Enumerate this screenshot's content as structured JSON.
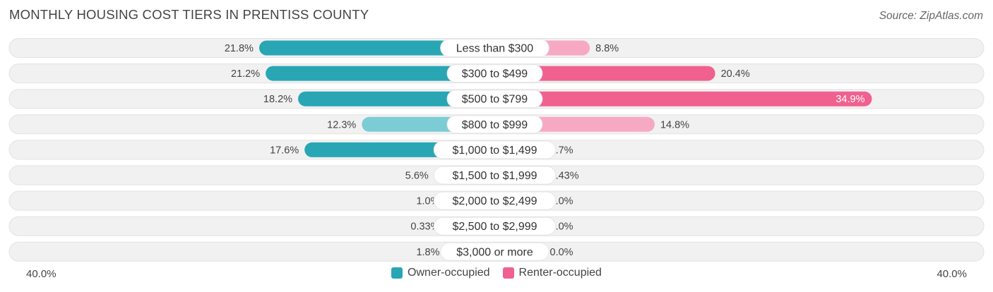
{
  "title": "MONTHLY HOUSING COST TIERS IN PRENTISS COUNTY",
  "source": "Source: ZipAtlas.com",
  "axis": {
    "left_label": "40.0%",
    "right_label": "40.0%"
  },
  "legend": {
    "owner_label": "Owner-occupied",
    "renter_label": "Renter-occupied"
  },
  "colors": {
    "owner_strong": "#29a6b4",
    "owner_light": "#7cccd5",
    "renter_strong": "#f0618f",
    "renter_light": "#f7a9c4",
    "track": "#f1f1f1"
  },
  "chart_data": {
    "type": "bar",
    "orientation": "horizontal-diverging",
    "title": "MONTHLY HOUSING COST TIERS IN PRENTISS COUNTY",
    "xlim": [
      0,
      40
    ],
    "categories": [
      "Less than $300",
      "$300 to $499",
      "$500 to $799",
      "$800 to $999",
      "$1,000 to $1,499",
      "$1,500 to $1,999",
      "$2,000 to $2,499",
      "$2,500 to $2,999",
      "$3,000 or more"
    ],
    "series": [
      {
        "name": "Owner-occupied",
        "values": [
          21.8,
          21.2,
          18.2,
          12.3,
          17.6,
          5.6,
          1.0,
          0.33,
          1.8
        ],
        "labels": [
          "21.8%",
          "21.2%",
          "18.2%",
          "12.3%",
          "17.6%",
          "5.6%",
          "1.0%",
          "0.33%",
          "1.8%"
        ]
      },
      {
        "name": "Renter-occupied",
        "values": [
          8.8,
          20.4,
          34.9,
          14.8,
          3.7,
          0.43,
          0.0,
          0.0,
          0.0
        ],
        "labels": [
          "8.8%",
          "20.4%",
          "34.9%",
          "14.8%",
          "3.7%",
          "0.43%",
          "0.0%",
          "0.0%",
          "0.0%"
        ]
      }
    ]
  }
}
